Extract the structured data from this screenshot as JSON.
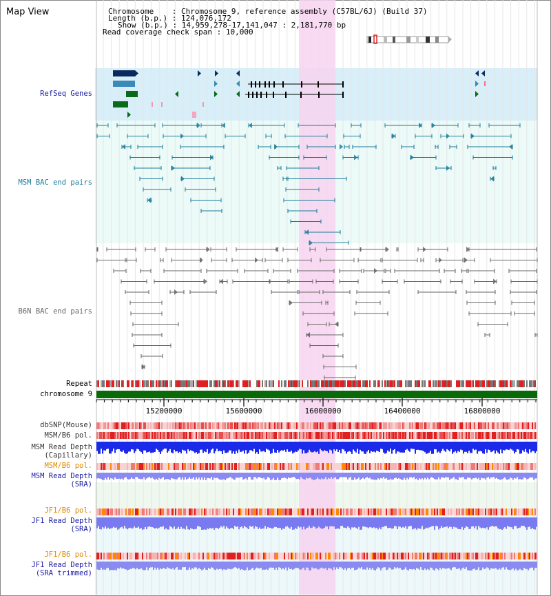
{
  "header": {
    "title": "Map View",
    "info": [
      {
        "label": "Chromosome",
        "value": "Chromosome 9, reference assembly (C57BL/6J) (Build 37)"
      },
      {
        "label": "Length (b.p.)",
        "value": "124,076,172"
      },
      {
        "label": "Show (b.p.)",
        "value": "14,959,278-17,141,047 : 2,181,770 bp"
      },
      {
        "label": "Read coverage check span",
        "value": "10,000"
      }
    ]
  },
  "axis": {
    "chromosome_label": "chromosome 9",
    "repeat_label": "Repeat",
    "ticks": [
      "15200000",
      "15600000",
      "16000000",
      "16400000",
      "16800000"
    ]
  },
  "tracks": {
    "refseq": {
      "label": "RefSeq Genes",
      "color": "#1a1aa6"
    },
    "msm_bac": {
      "label": "MSM BAC end pairs",
      "color": "#1a7a9a"
    },
    "b6n_bac": {
      "label": "B6N BAC end pairs",
      "color": "#666666"
    },
    "dbsnp": {
      "label": "dbSNP(Mouse)",
      "color": "#333333"
    },
    "msm_b6_pol": {
      "label": "MSM/B6 pol.",
      "color": "#333333"
    },
    "msm_depth_cap": {
      "label": "MSM Read Depth",
      "label2": "(Capillary)",
      "color": "#333333"
    },
    "msm_b6_pol_sra": {
      "label": "MSM/B6 pol.",
      "color": "#e08a00"
    },
    "msm_depth_sra": {
      "label": "MSM Read Depth",
      "label2": "(SRA)",
      "color": "#1a1aa6"
    },
    "jf1_pol_1": {
      "label": "JF1/B6 pol.",
      "color": "#e08a00"
    },
    "jf1_depth_sra": {
      "label": "JF1 Read Depth",
      "label2": "(SRA)",
      "color": "#1a1aa6"
    },
    "jf1_pol_2": {
      "label": "JF1/B6 pol.",
      "color": "#e08a00"
    },
    "jf1_depth_trim": {
      "label": "JF1 Read Depth",
      "label2": "(SRA trimmed)",
      "color": "#1a1aa6"
    }
  },
  "colors": {
    "highlight": "#f7d4f0",
    "refseq_bg": "#d8eef8",
    "bac_bg": "#ecfaf8",
    "gene_dark": "#0a2a5e",
    "gene_mid": "#3a8ab8",
    "gene_green": "#0a6a1a",
    "chromosome_bar": "#0a6a0a"
  }
}
